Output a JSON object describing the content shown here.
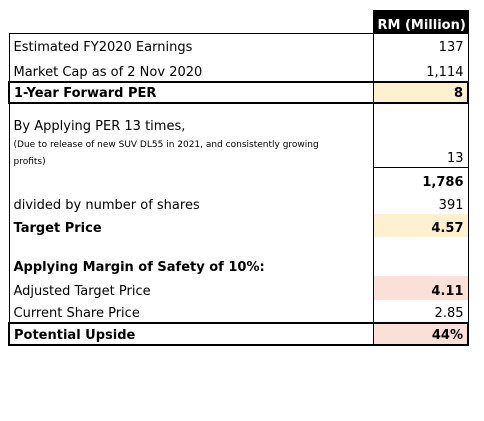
{
  "header": {
    "column_label": "RM (Million)"
  },
  "rows": {
    "earnings": {
      "label": "Estimated FY2020 Earnings",
      "value": "137"
    },
    "market_cap": {
      "label": "Market Cap as of 2 Nov 2020",
      "value": "1,114"
    },
    "forward_per": {
      "label": "1-Year Forward PER",
      "value": "8"
    },
    "apply_per": {
      "label": "By Applying PER 13 times,",
      "note_line1": "(Due to release of new SUV DL55 in 2021, and consistently growing",
      "note_line2": "profits)",
      "value": "13"
    },
    "product": {
      "value": "1,786"
    },
    "shares": {
      "label": "divided by number of shares",
      "value": "391"
    },
    "target_price": {
      "label": "Target Price",
      "value": "4.57"
    },
    "margin_heading": {
      "label": "Applying Margin of Safety of 10%:"
    },
    "adjusted_target": {
      "label": "Adjusted Target Price",
      "value": "4.11"
    },
    "current_price": {
      "label": "Current Share Price",
      "value": "2.85"
    },
    "upside": {
      "label": "Potential Upside",
      "value": "44%"
    }
  },
  "colors": {
    "header_bg": "#000000",
    "highlight_yellow": "#fdf1cf",
    "highlight_pink": "#fbe0d8"
  }
}
